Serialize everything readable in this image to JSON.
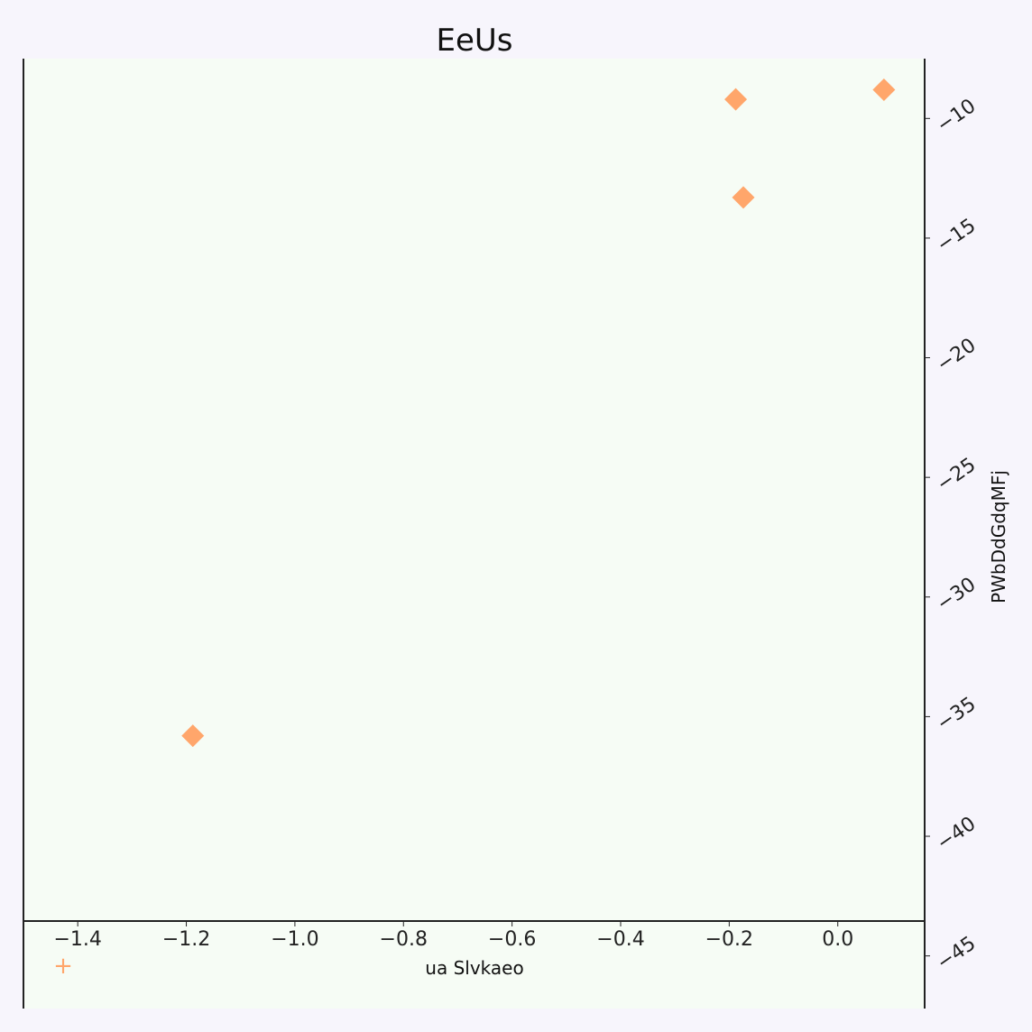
{
  "chart_data": {
    "type": "scatter",
    "title": "EeUs",
    "xlabel": "ua  Slvkaeo",
    "ylabel": "PWbDdGdqMFj",
    "xlim": [
      -1.5,
      0.16
    ],
    "ylim": [
      -47.2,
      -7.5
    ],
    "xticks": [
      -1.4,
      -1.2,
      -1.0,
      -0.8,
      -0.6,
      -0.4,
      -0.2,
      0.0
    ],
    "yticks": [
      -10,
      -15,
      -20,
      -25,
      -30,
      -35,
      -40,
      -45
    ],
    "yaxis_position": "right",
    "grid": false,
    "legend_marker": "+",
    "series": [
      {
        "marker": "diamond",
        "color": "#ffa66b",
        "points": [
          {
            "x": -0.188,
            "y": -9.2
          },
          {
            "x": 0.085,
            "y": -8.8
          },
          {
            "x": -0.174,
            "y": -13.3
          },
          {
            "x": -1.188,
            "y": -35.8
          }
        ]
      }
    ],
    "colors": {
      "background": "#f7f5fc",
      "plot_background": "#f6fcf5",
      "axis": "#222222",
      "marker": "#ffa66b"
    }
  }
}
